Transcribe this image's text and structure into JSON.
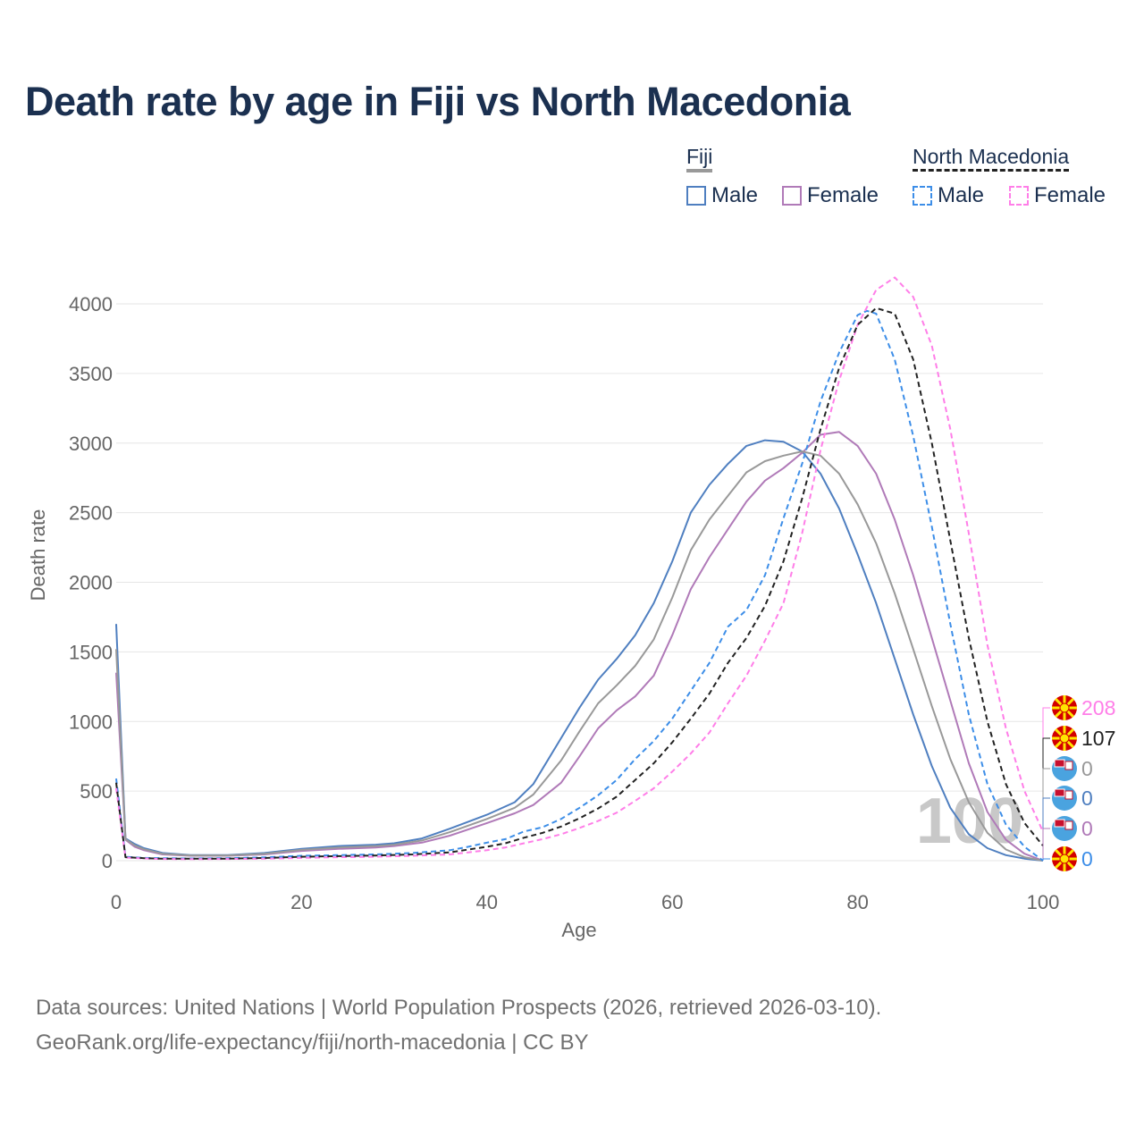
{
  "title": "Death rate by age in Fiji vs North Macedonia",
  "legend": {
    "group1": "Fiji",
    "group2": "North Macedonia",
    "male_label": "Male",
    "female_label": "Female"
  },
  "source": {
    "line1": "Data sources: United Nations | World Population Prospects (2026, retrieved 2026-03-10).",
    "line2": "GeoRank.org/life-expectancy/fiji/north-macedonia | CC BY"
  },
  "colors": {
    "fiji_male": "#4f7fc0",
    "fiji_female": "#b07ab8",
    "fiji_total": "#999999",
    "mk_male": "#3d8ee8",
    "mk_female": "#ff7ee8",
    "mk_total": "#222222",
    "title": "#1b3050",
    "grid": "#e6e6e6",
    "axis_text": "#666666",
    "watermark": "#c8c8c8"
  },
  "chart_data": {
    "type": "line",
    "title": "Death rate by age in Fiji vs North Macedonia",
    "xlabel": "Age",
    "ylabel": "Death rate",
    "xlim": [
      0,
      100
    ],
    "ylim": [
      0,
      4000
    ],
    "x_ticks": [
      "0",
      "20",
      "40",
      "60",
      "80",
      "100"
    ],
    "y_ticks": [
      "0",
      "500",
      "1000",
      "1500",
      "2000",
      "2500",
      "3000",
      "3500",
      "4000"
    ],
    "watermark": "100",
    "end_labels": [
      {
        "series": "North Macedonia Female",
        "value": "208",
        "color": "#ff7ee8",
        "flag": "north-macedonia-flag-icon"
      },
      {
        "series": "North Macedonia Total",
        "value": "107",
        "color": "#222222",
        "flag": "north-macedonia-flag-icon"
      },
      {
        "series": "Fiji Total",
        "value": "0",
        "color": "#999999",
        "flag": "fiji-flag-icon"
      },
      {
        "series": "Fiji Male",
        "value": "0",
        "color": "#4f7fc0",
        "flag": "fiji-flag-icon"
      },
      {
        "series": "Fiji Female",
        "value": "0",
        "color": "#b07ab8",
        "flag": "fiji-flag-icon"
      },
      {
        "series": "North Macedonia Male",
        "value": "0",
        "color": "#3d8ee8",
        "flag": "north-macedonia-flag-icon"
      }
    ],
    "series": [
      {
        "name": "Fiji Male",
        "color": "#4f7fc0",
        "dash": "solid",
        "points": [
          [
            0,
            1700
          ],
          [
            1,
            160
          ],
          [
            2,
            120
          ],
          [
            3,
            90
          ],
          [
            5,
            55
          ],
          [
            8,
            40
          ],
          [
            12,
            40
          ],
          [
            16,
            55
          ],
          [
            20,
            85
          ],
          [
            24,
            105
          ],
          [
            28,
            115
          ],
          [
            30,
            125
          ],
          [
            33,
            160
          ],
          [
            36,
            230
          ],
          [
            40,
            330
          ],
          [
            43,
            420
          ],
          [
            45,
            550
          ],
          [
            48,
            880
          ],
          [
            50,
            1100
          ],
          [
            52,
            1300
          ],
          [
            54,
            1450
          ],
          [
            56,
            1620
          ],
          [
            58,
            1850
          ],
          [
            60,
            2150
          ],
          [
            62,
            2500
          ],
          [
            64,
            2700
          ],
          [
            66,
            2850
          ],
          [
            68,
            2980
          ],
          [
            70,
            3020
          ],
          [
            72,
            3010
          ],
          [
            74,
            2940
          ],
          [
            76,
            2780
          ],
          [
            78,
            2530
          ],
          [
            80,
            2200
          ],
          [
            82,
            1850
          ],
          [
            84,
            1450
          ],
          [
            86,
            1050
          ],
          [
            88,
            680
          ],
          [
            90,
            380
          ],
          [
            92,
            190
          ],
          [
            94,
            90
          ],
          [
            96,
            40
          ],
          [
            98,
            15
          ],
          [
            100,
            0
          ]
        ]
      },
      {
        "name": "Fiji Female",
        "color": "#b07ab8",
        "dash": "solid",
        "points": [
          [
            0,
            1350
          ],
          [
            1,
            150
          ],
          [
            2,
            100
          ],
          [
            3,
            75
          ],
          [
            5,
            45
          ],
          [
            8,
            35
          ],
          [
            12,
            35
          ],
          [
            16,
            45
          ],
          [
            20,
            70
          ],
          [
            24,
            85
          ],
          [
            28,
            95
          ],
          [
            30,
            105
          ],
          [
            33,
            130
          ],
          [
            36,
            180
          ],
          [
            40,
            270
          ],
          [
            43,
            340
          ],
          [
            45,
            400
          ],
          [
            48,
            560
          ],
          [
            50,
            750
          ],
          [
            52,
            950
          ],
          [
            54,
            1080
          ],
          [
            56,
            1180
          ],
          [
            58,
            1330
          ],
          [
            60,
            1620
          ],
          [
            62,
            1950
          ],
          [
            64,
            2180
          ],
          [
            66,
            2380
          ],
          [
            68,
            2580
          ],
          [
            70,
            2730
          ],
          [
            72,
            2820
          ],
          [
            74,
            2930
          ],
          [
            76,
            3060
          ],
          [
            78,
            3080
          ],
          [
            80,
            2980
          ],
          [
            82,
            2780
          ],
          [
            84,
            2450
          ],
          [
            86,
            2050
          ],
          [
            88,
            1600
          ],
          [
            90,
            1150
          ],
          [
            92,
            700
          ],
          [
            94,
            350
          ],
          [
            96,
            150
          ],
          [
            98,
            50
          ],
          [
            100,
            0
          ]
        ]
      },
      {
        "name": "Fiji Total",
        "color": "#999999",
        "dash": "solid",
        "points": [
          [
            0,
            1520
          ],
          [
            1,
            155
          ],
          [
            2,
            110
          ],
          [
            3,
            82
          ],
          [
            5,
            50
          ],
          [
            8,
            38
          ],
          [
            12,
            38
          ],
          [
            16,
            50
          ],
          [
            20,
            78
          ],
          [
            24,
            95
          ],
          [
            28,
            105
          ],
          [
            30,
            115
          ],
          [
            33,
            145
          ],
          [
            36,
            205
          ],
          [
            40,
            300
          ],
          [
            43,
            380
          ],
          [
            45,
            475
          ],
          [
            48,
            720
          ],
          [
            50,
            930
          ],
          [
            52,
            1130
          ],
          [
            54,
            1260
          ],
          [
            56,
            1400
          ],
          [
            58,
            1590
          ],
          [
            60,
            1890
          ],
          [
            62,
            2230
          ],
          [
            64,
            2450
          ],
          [
            66,
            2620
          ],
          [
            68,
            2790
          ],
          [
            70,
            2870
          ],
          [
            72,
            2910
          ],
          [
            74,
            2940
          ],
          [
            76,
            2910
          ],
          [
            78,
            2780
          ],
          [
            80,
            2560
          ],
          [
            82,
            2280
          ],
          [
            84,
            1920
          ],
          [
            86,
            1520
          ],
          [
            88,
            1110
          ],
          [
            90,
            730
          ],
          [
            92,
            420
          ],
          [
            94,
            200
          ],
          [
            96,
            80
          ],
          [
            98,
            25
          ],
          [
            100,
            0
          ]
        ]
      },
      {
        "name": "North Macedonia Male",
        "color": "#3d8ee8",
        "dash": "dashed",
        "points": [
          [
            0,
            590
          ],
          [
            1,
            28
          ],
          [
            2,
            24
          ],
          [
            3,
            20
          ],
          [
            5,
            18
          ],
          [
            8,
            16
          ],
          [
            12,
            18
          ],
          [
            16,
            24
          ],
          [
            20,
            35
          ],
          [
            24,
            40
          ],
          [
            28,
            45
          ],
          [
            32,
            55
          ],
          [
            36,
            75
          ],
          [
            38,
            100
          ],
          [
            40,
            130
          ],
          [
            42,
            155
          ],
          [
            44,
            210
          ],
          [
            46,
            240
          ],
          [
            48,
            300
          ],
          [
            50,
            380
          ],
          [
            52,
            470
          ],
          [
            54,
            580
          ],
          [
            56,
            730
          ],
          [
            58,
            860
          ],
          [
            60,
            1020
          ],
          [
            62,
            1220
          ],
          [
            64,
            1420
          ],
          [
            66,
            1680
          ],
          [
            68,
            1800
          ],
          [
            70,
            2050
          ],
          [
            72,
            2460
          ],
          [
            74,
            2850
          ],
          [
            76,
            3300
          ],
          [
            78,
            3650
          ],
          [
            80,
            3920
          ],
          [
            81,
            3950
          ],
          [
            82,
            3930
          ],
          [
            84,
            3600
          ],
          [
            86,
            3050
          ],
          [
            88,
            2400
          ],
          [
            90,
            1700
          ],
          [
            92,
            1050
          ],
          [
            94,
            550
          ],
          [
            96,
            260
          ],
          [
            98,
            100
          ],
          [
            100,
            0
          ]
        ]
      },
      {
        "name": "North Macedonia Female",
        "color": "#ff7ee8",
        "dash": "dashed",
        "points": [
          [
            0,
            520
          ],
          [
            1,
            22
          ],
          [
            2,
            19
          ],
          [
            3,
            16
          ],
          [
            5,
            12
          ],
          [
            8,
            11
          ],
          [
            12,
            12
          ],
          [
            16,
            14
          ],
          [
            20,
            20
          ],
          [
            24,
            25
          ],
          [
            28,
            28
          ],
          [
            32,
            35
          ],
          [
            36,
            45
          ],
          [
            38,
            60
          ],
          [
            40,
            75
          ],
          [
            42,
            95
          ],
          [
            44,
            125
          ],
          [
            46,
            155
          ],
          [
            48,
            190
          ],
          [
            50,
            235
          ],
          [
            52,
            285
          ],
          [
            54,
            345
          ],
          [
            56,
            430
          ],
          [
            58,
            520
          ],
          [
            60,
            640
          ],
          [
            62,
            770
          ],
          [
            64,
            920
          ],
          [
            66,
            1130
          ],
          [
            68,
            1330
          ],
          [
            70,
            1580
          ],
          [
            72,
            1850
          ],
          [
            74,
            2350
          ],
          [
            76,
            2950
          ],
          [
            78,
            3450
          ],
          [
            80,
            3850
          ],
          [
            82,
            4100
          ],
          [
            84,
            4190
          ],
          [
            86,
            4050
          ],
          [
            88,
            3700
          ],
          [
            90,
            3100
          ],
          [
            92,
            2350
          ],
          [
            94,
            1550
          ],
          [
            96,
            950
          ],
          [
            98,
            500
          ],
          [
            100,
            208
          ]
        ]
      },
      {
        "name": "North Macedonia Total",
        "color": "#222222",
        "dash": "dashed",
        "points": [
          [
            0,
            560
          ],
          [
            1,
            25
          ],
          [
            2,
            22
          ],
          [
            3,
            18
          ],
          [
            5,
            15
          ],
          [
            8,
            14
          ],
          [
            12,
            15
          ],
          [
            16,
            19
          ],
          [
            20,
            28
          ],
          [
            24,
            33
          ],
          [
            28,
            37
          ],
          [
            32,
            45
          ],
          [
            36,
            60
          ],
          [
            38,
            80
          ],
          [
            40,
            100
          ],
          [
            42,
            125
          ],
          [
            44,
            165
          ],
          [
            46,
            200
          ],
          [
            48,
            245
          ],
          [
            50,
            305
          ],
          [
            52,
            375
          ],
          [
            54,
            460
          ],
          [
            56,
            580
          ],
          [
            58,
            700
          ],
          [
            60,
            850
          ],
          [
            62,
            1020
          ],
          [
            64,
            1200
          ],
          [
            66,
            1420
          ],
          [
            68,
            1600
          ],
          [
            70,
            1830
          ],
          [
            72,
            2150
          ],
          [
            74,
            2600
          ],
          [
            76,
            3100
          ],
          [
            78,
            3540
          ],
          [
            80,
            3850
          ],
          [
            82,
            3970
          ],
          [
            84,
            3930
          ],
          [
            86,
            3600
          ],
          [
            88,
            3000
          ],
          [
            90,
            2300
          ],
          [
            92,
            1600
          ],
          [
            94,
            1000
          ],
          [
            96,
            550
          ],
          [
            98,
            270
          ],
          [
            100,
            107
          ]
        ]
      }
    ]
  }
}
